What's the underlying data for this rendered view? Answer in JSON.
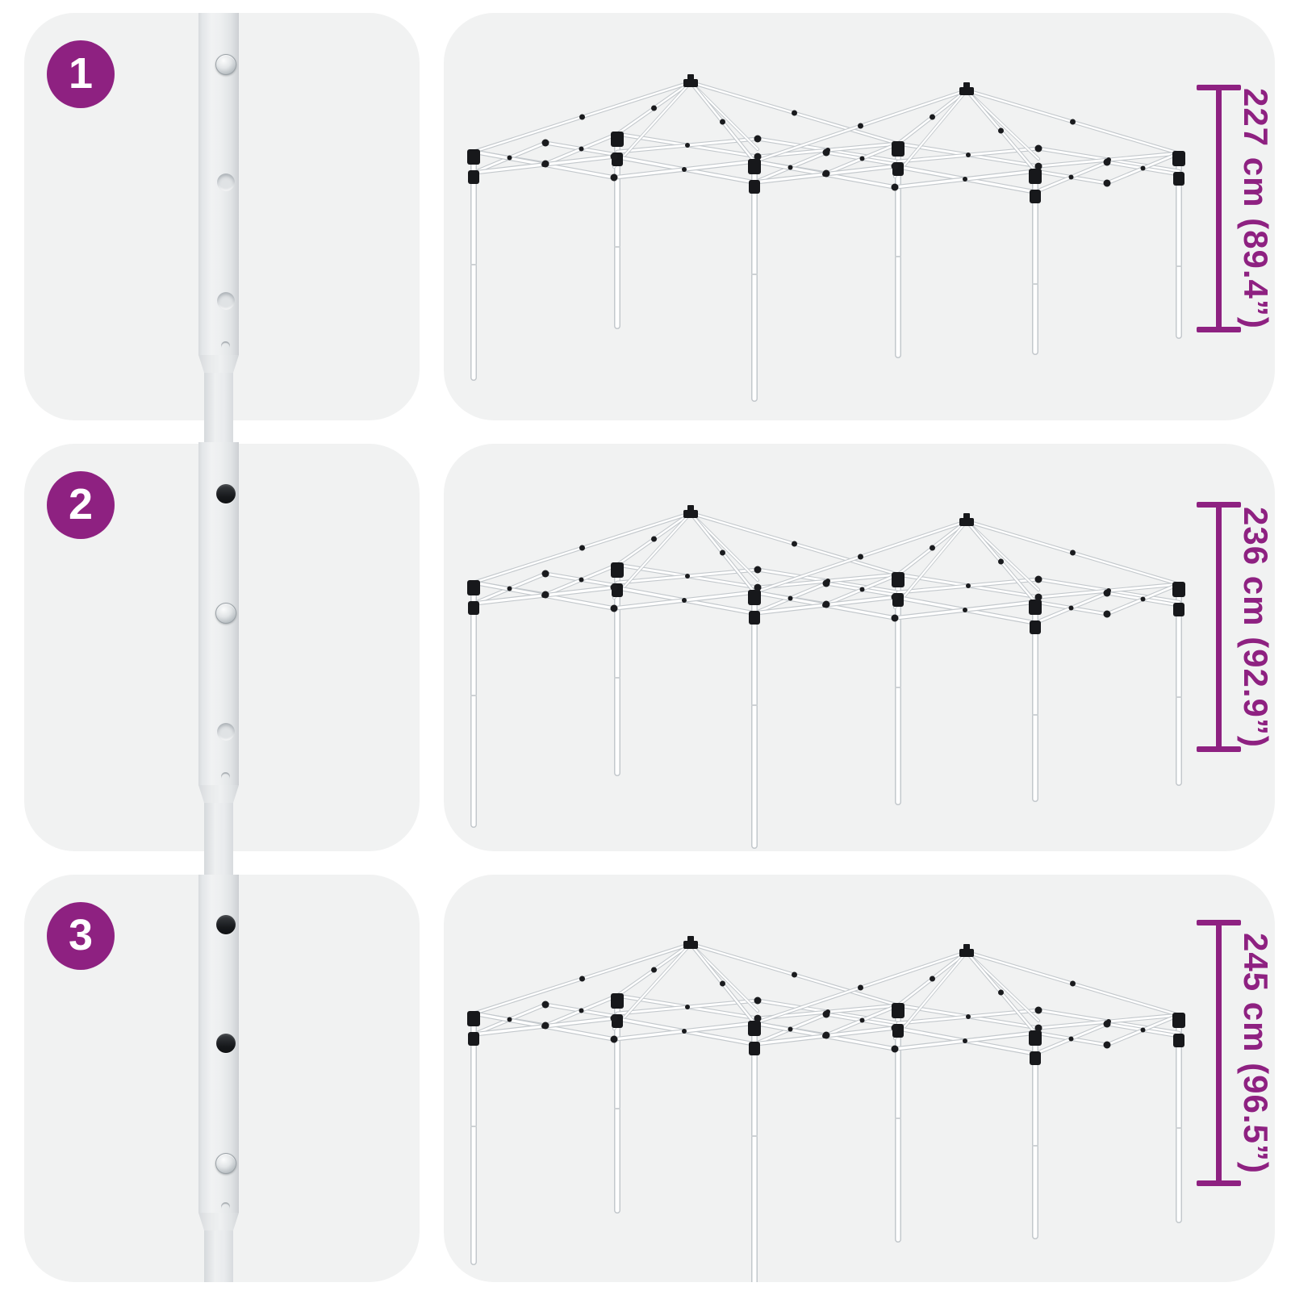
{
  "accent_color": "#8E2181",
  "panel_bg": "#F1F2F2",
  "illustration": {
    "left_column": "telescopic-gazebo-leg-close-up",
    "right_column": "gazebo-frame-wireframe",
    "pole_hole_states_legend": [
      "pin = locking button engaged",
      "open = empty dark hole",
      "dimple = unused hole"
    ]
  },
  "steps": [
    {
      "number": "1",
      "height_label": "227 cm (89.4”)",
      "pole_holes": [
        "pin",
        "dimple",
        "dimple"
      ]
    },
    {
      "number": "2",
      "height_label": "236 cm (92.9”)",
      "pole_holes": [
        "open",
        "pin",
        "dimple"
      ]
    },
    {
      "number": "3",
      "height_label": "245 cm (96.5”)",
      "pole_holes": [
        "open",
        "open",
        "pin"
      ]
    }
  ]
}
